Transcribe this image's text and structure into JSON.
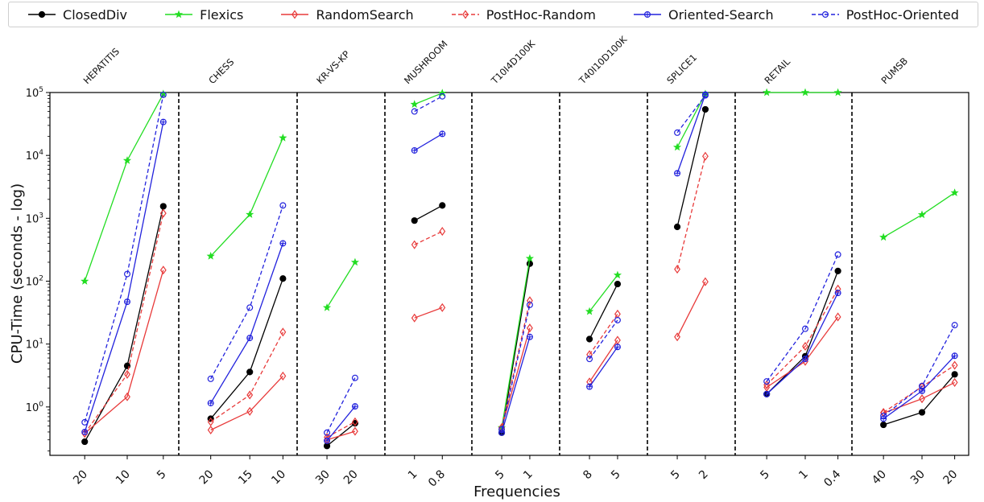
{
  "chart_data": {
    "type": "line",
    "xlabel": "Frequencies",
    "ylabel": "CPU-Time (seconds - log)",
    "yscale": "log",
    "ylim": [
      0.17,
      100000
    ],
    "y_tick_labels": [
      "10^0",
      "10^1",
      "10^2",
      "10^3",
      "10^4",
      "10^5"
    ],
    "legend_position": "top",
    "series_styles": [
      {
        "name": "ClosedDiv",
        "color": "#000000",
        "dash": "solid",
        "marker": "filled-circle"
      },
      {
        "name": "Flexics",
        "color": "#22dd22",
        "dash": "solid",
        "marker": "star"
      },
      {
        "name": "RandomSearch",
        "color": "#e83a3a",
        "dash": "solid",
        "marker": "diamond"
      },
      {
        "name": "PostHoc-Random",
        "color": "#e83a3a",
        "dash": "dashed",
        "marker": "diamond"
      },
      {
        "name": "Oriented-Search",
        "color": "#2222dd",
        "dash": "solid",
        "marker": "plus-circle"
      },
      {
        "name": "PostHoc-Oriented",
        "color": "#2222dd",
        "dash": "dashed",
        "marker": "circle"
      }
    ],
    "panels": [
      {
        "name": "HEPATITIS",
        "x": [
          "20",
          "10",
          "5"
        ],
        "series": [
          {
            "name": "ClosedDiv",
            "values": [
              0.28,
              4.5,
              1550
            ]
          },
          {
            "name": "Flexics",
            "values": [
              100,
              8300,
              95000
            ]
          },
          {
            "name": "RandomSearch",
            "values": [
              0.38,
              1.45,
              150
            ]
          },
          {
            "name": "PostHoc-Random",
            "values": [
              0.38,
              3.3,
              1200
            ]
          },
          {
            "name": "Oriented-Search",
            "values": [
              0.4,
              47,
              34000
            ]
          },
          {
            "name": "PostHoc-Oriented",
            "values": [
              0.57,
              130,
              92000
            ]
          }
        ]
      },
      {
        "name": "CHESS",
        "x": [
          "20",
          "15",
          "10"
        ],
        "series": [
          {
            "name": "ClosedDiv",
            "values": [
              0.65,
              3.6,
              110
            ]
          },
          {
            "name": "Flexics",
            "values": [
              250,
              1150,
              19000
            ]
          },
          {
            "name": "RandomSearch",
            "values": [
              0.43,
              0.85,
              3.1
            ]
          },
          {
            "name": "PostHoc-Random",
            "values": [
              0.58,
              1.55,
              15.5
            ]
          },
          {
            "name": "Oriented-Search",
            "values": [
              1.15,
              12.5,
              400
            ]
          },
          {
            "name": "PostHoc-Oriented",
            "values": [
              2.8,
              38,
              1600
            ]
          }
        ]
      },
      {
        "name": "KR-VS-KP",
        "x": [
          "30",
          "20"
        ],
        "series": [
          {
            "name": "ClosedDiv",
            "values": [
              0.24,
              0.55
            ]
          },
          {
            "name": "Flexics",
            "values": [
              38,
              200
            ]
          },
          {
            "name": "RandomSearch",
            "values": [
              0.3,
              0.41
            ]
          },
          {
            "name": "PostHoc-Random",
            "values": [
              0.33,
              0.58
            ]
          },
          {
            "name": "Oriented-Search",
            "values": [
              0.29,
              1.02
            ]
          },
          {
            "name": "PostHoc-Oriented",
            "values": [
              0.39,
              2.9
            ]
          }
        ]
      },
      {
        "name": "MUSHROOM",
        "x": [
          "1",
          "0.8"
        ],
        "series": [
          {
            "name": "ClosedDiv",
            "values": [
              920,
              1600
            ]
          },
          {
            "name": "Flexics",
            "values": [
              65000,
              98000
            ]
          },
          {
            "name": "RandomSearch",
            "values": [
              26,
              38
            ]
          },
          {
            "name": "PostHoc-Random",
            "values": [
              380,
              620
            ]
          },
          {
            "name": "Oriented-Search",
            "values": [
              12000,
              22000
            ]
          },
          {
            "name": "PostHoc-Oriented",
            "values": [
              50000,
              87000
            ]
          }
        ]
      },
      {
        "name": "T10I4D100K",
        "x": [
          "5",
          "1"
        ],
        "series": [
          {
            "name": "ClosedDiv",
            "values": [
              0.39,
              190
            ]
          },
          {
            "name": "Flexics",
            "values": [
              0.47,
              230
            ]
          },
          {
            "name": "RandomSearch",
            "values": [
              0.47,
              18
            ]
          },
          {
            "name": "PostHoc-Random",
            "values": [
              0.47,
              49
            ]
          },
          {
            "name": "Oriented-Search",
            "values": [
              0.39,
              13
            ]
          },
          {
            "name": "PostHoc-Oriented",
            "values": [
              0.44,
              42
            ]
          }
        ]
      },
      {
        "name": "T40I10D100K",
        "x": [
          "8",
          "5"
        ],
        "series": [
          {
            "name": "ClosedDiv",
            "values": [
              12,
              90
            ]
          },
          {
            "name": "Flexics",
            "values": [
              33,
              125
            ]
          },
          {
            "name": "RandomSearch",
            "values": [
              2.5,
              11.5
            ]
          },
          {
            "name": "PostHoc-Random",
            "values": [
              6.8,
              30
            ]
          },
          {
            "name": "Oriented-Search",
            "values": [
              2.1,
              9
            ]
          },
          {
            "name": "PostHoc-Oriented",
            "values": [
              5.8,
              24
            ]
          }
        ]
      },
      {
        "name": "SPLICE1",
        "x": [
          "5",
          "2"
        ],
        "series": [
          {
            "name": "ClosedDiv",
            "values": [
              730,
              54000
            ]
          },
          {
            "name": "Flexics",
            "values": [
              13500,
              95000
            ]
          },
          {
            "name": "RandomSearch",
            "values": [
              13,
              98
            ]
          },
          {
            "name": "PostHoc-Random",
            "values": [
              155,
              9700
            ]
          },
          {
            "name": "Oriented-Search",
            "values": [
              5200,
              93000
            ]
          },
          {
            "name": "PostHoc-Oriented",
            "values": [
              23000,
              90000
            ]
          }
        ]
      },
      {
        "name": "RETAIL",
        "x": [
          "5",
          "1",
          "0.4"
        ],
        "series": [
          {
            "name": "ClosedDiv",
            "values": [
              1.6,
              6.4,
              145
            ]
          },
          {
            "name": "Flexics",
            "values": [
              100000,
              100000,
              100000
            ]
          },
          {
            "name": "RandomSearch",
            "values": [
              2.05,
              5.3,
              27
            ]
          },
          {
            "name": "PostHoc-Random",
            "values": [
              2.25,
              9.2,
              75
            ]
          },
          {
            "name": "Oriented-Search",
            "values": [
              1.6,
              5.8,
              65
            ]
          },
          {
            "name": "PostHoc-Oriented",
            "values": [
              2.55,
              17.5,
              265
            ]
          }
        ]
      },
      {
        "name": "PUMSB",
        "x": [
          "40",
          "30",
          "20"
        ],
        "series": [
          {
            "name": "ClosedDiv",
            "values": [
              0.52,
              0.82,
              3.3
            ]
          },
          {
            "name": "Flexics",
            "values": [
              500,
              1140,
              2550
            ]
          },
          {
            "name": "RandomSearch",
            "values": [
              0.8,
              1.35,
              2.45
            ]
          },
          {
            "name": "PostHoc-Random",
            "values": [
              0.82,
              2.1,
              4.6
            ]
          },
          {
            "name": "Oriented-Search",
            "values": [
              0.65,
              1.8,
              6.5
            ]
          },
          {
            "name": "PostHoc-Oriented",
            "values": [
              0.72,
              2.15,
              20
            ]
          }
        ]
      }
    ]
  }
}
